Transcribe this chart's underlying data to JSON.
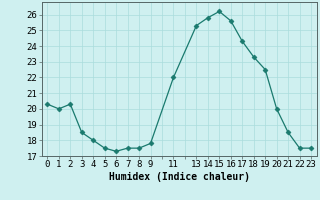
{
  "x": [
    0,
    1,
    2,
    3,
    4,
    5,
    6,
    7,
    8,
    9,
    11,
    13,
    14,
    15,
    16,
    17,
    18,
    19,
    20,
    21,
    22,
    23
  ],
  "y": [
    20.3,
    20.0,
    20.3,
    18.5,
    18.0,
    17.5,
    17.3,
    17.5,
    17.5,
    17.8,
    22.0,
    25.3,
    25.8,
    26.2,
    25.6,
    24.3,
    23.3,
    22.5,
    20.0,
    18.5,
    17.5,
    17.5
  ],
  "line_color": "#1a7a6e",
  "marker": "D",
  "marker_size": 2.5,
  "bg_color": "#cff0f0",
  "grid_color": "#aadddd",
  "xlabel": "Humidex (Indice chaleur)",
  "xlabel_fontsize": 7,
  "tick_fontsize": 6.5,
  "xlim": [
    -0.5,
    23.5
  ],
  "ylim": [
    17,
    26.8
  ],
  "yticks": [
    17,
    18,
    19,
    20,
    21,
    22,
    23,
    24,
    25,
    26
  ],
  "xtick_labels": [
    "0",
    "1",
    "2",
    "3",
    "4",
    "5",
    "6",
    "7",
    "8",
    "9",
    "",
    "11",
    "",
    "13",
    "14",
    "15",
    "16",
    "17",
    "18",
    "19",
    "20",
    "21",
    "22",
    "23"
  ],
  "xtick_positions": [
    0,
    1,
    2,
    3,
    4,
    5,
    6,
    7,
    8,
    9,
    10,
    11,
    12,
    13,
    14,
    15,
    16,
    17,
    18,
    19,
    20,
    21,
    22,
    23
  ]
}
